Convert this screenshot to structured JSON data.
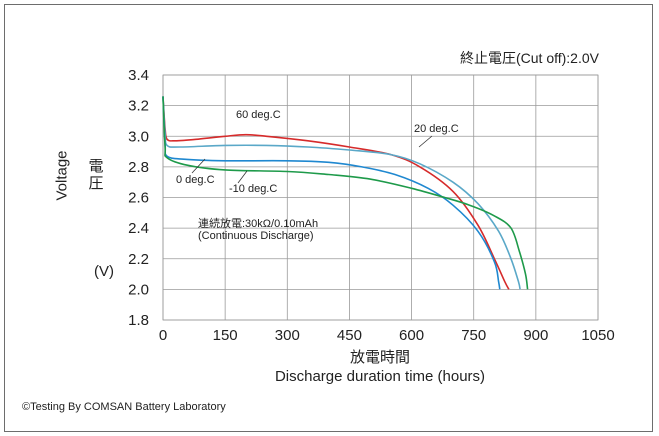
{
  "header": {
    "cutoff_note": "終止電圧(Cut off):2.0V"
  },
  "axes": {
    "ylabel_en": "Voltage",
    "ylabel_zh": "電圧",
    "yunit": "(V)",
    "xlabel_zh": "放電時間",
    "xlabel_en": "Discharge duration time (hours)"
  },
  "annotations": {
    "condition_zh": "連続放電:30kΩ/0.10mAh",
    "condition_en": "(Continuous Discharge)"
  },
  "footer": {
    "copyright": "©Testing By COMSAN Battery Laboratory"
  },
  "colors": {
    "grid": "#9a9a9a",
    "series_60": "#d62b2b",
    "series_20": "#5aa8c8",
    "series_0": "#1f88d0",
    "series_m10": "#1e9a4a"
  },
  "chart_data": {
    "type": "line",
    "title": "",
    "xlabel": "Discharge duration time (hours)",
    "ylabel": "Voltage",
    "xlim": [
      0,
      1050
    ],
    "ylim": [
      1.8,
      3.4
    ],
    "xticks": [
      0,
      150,
      300,
      450,
      600,
      750,
      900,
      1050
    ],
    "yticks": [
      1.8,
      2.0,
      2.2,
      2.4,
      2.6,
      2.8,
      3.0,
      3.2,
      3.4
    ],
    "grid": true,
    "series": [
      {
        "name": "60 deg.C",
        "color": "#d62b2b",
        "points": [
          [
            0,
            3.26
          ],
          [
            5,
            3.05
          ],
          [
            10,
            2.98
          ],
          [
            30,
            2.97
          ],
          [
            80,
            2.98
          ],
          [
            150,
            3.0
          ],
          [
            200,
            3.01
          ],
          [
            250,
            3.0
          ],
          [
            350,
            2.97
          ],
          [
            450,
            2.93
          ],
          [
            550,
            2.88
          ],
          [
            620,
            2.8
          ],
          [
            700,
            2.64
          ],
          [
            760,
            2.42
          ],
          [
            800,
            2.2
          ],
          [
            825,
            2.05
          ],
          [
            835,
            2.0
          ]
        ]
      },
      {
        "name": "20 deg.C",
        "color": "#5aa8c8",
        "points": [
          [
            0,
            3.26
          ],
          [
            5,
            3.02
          ],
          [
            10,
            2.94
          ],
          [
            40,
            2.93
          ],
          [
            150,
            2.94
          ],
          [
            250,
            2.94
          ],
          [
            350,
            2.93
          ],
          [
            450,
            2.91
          ],
          [
            550,
            2.88
          ],
          [
            620,
            2.82
          ],
          [
            700,
            2.7
          ],
          [
            760,
            2.56
          ],
          [
            810,
            2.38
          ],
          [
            840,
            2.2
          ],
          [
            858,
            2.05
          ],
          [
            862,
            2.0
          ]
        ]
      },
      {
        "name": "0 deg.C",
        "color": "#1f88d0",
        "points": [
          [
            0,
            3.26
          ],
          [
            5,
            2.95
          ],
          [
            10,
            2.87
          ],
          [
            50,
            2.85
          ],
          [
            150,
            2.84
          ],
          [
            300,
            2.84
          ],
          [
            400,
            2.83
          ],
          [
            480,
            2.8
          ],
          [
            560,
            2.75
          ],
          [
            640,
            2.66
          ],
          [
            700,
            2.55
          ],
          [
            760,
            2.38
          ],
          [
            800,
            2.18
          ],
          [
            810,
            2.05
          ],
          [
            813,
            2.0
          ]
        ]
      },
      {
        "name": "-10 deg.C",
        "color": "#1e9a4a",
        "points": [
          [
            0,
            3.26
          ],
          [
            5,
            2.93
          ],
          [
            10,
            2.86
          ],
          [
            60,
            2.81
          ],
          [
            150,
            2.78
          ],
          [
            300,
            2.77
          ],
          [
            400,
            2.75
          ],
          [
            500,
            2.72
          ],
          [
            600,
            2.66
          ],
          [
            680,
            2.6
          ],
          [
            740,
            2.55
          ],
          [
            800,
            2.48
          ],
          [
            840,
            2.4
          ],
          [
            860,
            2.25
          ],
          [
            875,
            2.1
          ],
          [
            880,
            2.0
          ]
        ]
      }
    ]
  }
}
